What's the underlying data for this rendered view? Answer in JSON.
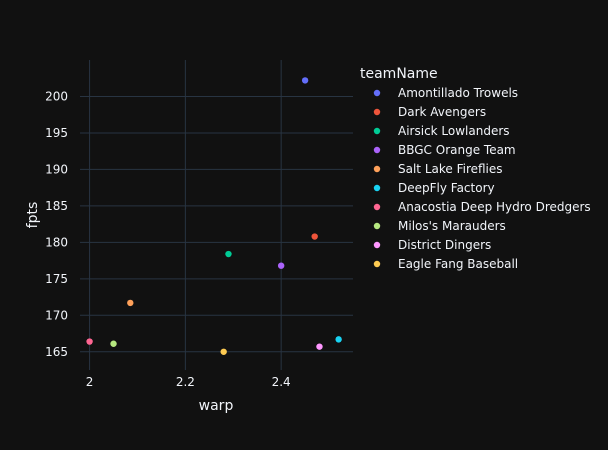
{
  "chart_data": {
    "type": "scatter",
    "xlabel": "warp",
    "ylabel": "fpts",
    "xlim": [
      1.98,
      2.55
    ],
    "ylim": [
      162.5,
      205
    ],
    "x_ticks": [
      2,
      2.2,
      2.4
    ],
    "y_ticks": [
      165,
      170,
      175,
      180,
      185,
      190,
      195,
      200
    ],
    "grid": true,
    "legend_position": "right",
    "legend_title": "teamName",
    "series": [
      {
        "name": "Amontillado Trowels",
        "color": "#636efa",
        "x": [
          2.45
        ],
        "y": [
          202.2
        ]
      },
      {
        "name": "Dark Avengers",
        "color": "#EF553B",
        "x": [
          2.47
        ],
        "y": [
          180.8
        ]
      },
      {
        "name": "Airsick Lowlanders",
        "color": "#00cc96",
        "x": [
          2.29
        ],
        "y": [
          178.4
        ]
      },
      {
        "name": "BBGC Orange Team",
        "color": "#ab63fa",
        "x": [
          2.4
        ],
        "y": [
          176.8
        ]
      },
      {
        "name": "Salt Lake Fireflies",
        "color": "#FFA15A",
        "x": [
          2.085
        ],
        "y": [
          171.7
        ]
      },
      {
        "name": "DeepFly Factory",
        "color": "#19d3f3",
        "x": [
          2.52
        ],
        "y": [
          166.7
        ]
      },
      {
        "name": "Anacostia Deep Hydro Dredgers",
        "color": "#FF6692",
        "x": [
          2.0
        ],
        "y": [
          166.4
        ]
      },
      {
        "name": "Milos's Marauders",
        "color": "#B6E880",
        "x": [
          2.05
        ],
        "y": [
          166.1
        ]
      },
      {
        "name": "District Dingers",
        "color": "#FF97FF",
        "x": [
          2.48
        ],
        "y": [
          165.7
        ]
      },
      {
        "name": "Eagle Fang Baseball",
        "color": "#FECB52",
        "x": [
          2.28
        ],
        "y": [
          165.0
        ]
      }
    ]
  },
  "colors": {
    "background": "#111111",
    "plot_background": "#111111",
    "grid": "#283442",
    "text": "#f2f5fa"
  }
}
